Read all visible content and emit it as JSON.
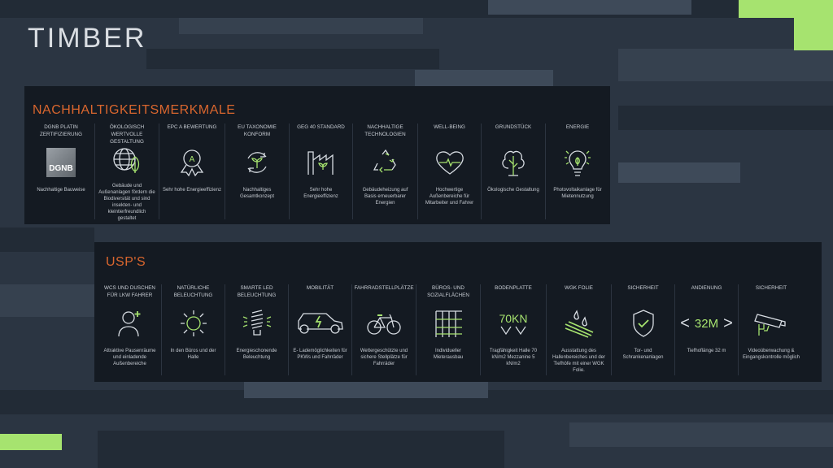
{
  "logo": "TIMBER",
  "colors": {
    "accent_green": "#a6e36f",
    "title_orange": "#d9662e",
    "panel": "#141a22",
    "background": "#2b3542"
  },
  "section1": {
    "title": "NACHHALTIGKEITSMERKMALE",
    "items": [
      {
        "heading": "DGNB PLATIN ZERTIFIZIERUNG",
        "icon": "dgnb-logo",
        "logo_text": "DGNB",
        "desc": "Nachhaltige Bauweise"
      },
      {
        "heading": "ÖKOLOGISCH WERTVOLLE GESTALTUNG",
        "icon": "globe-leaf-icon",
        "desc": "Gebäude und Außenanlagen fördern die Biodiversität und sind insekten- und kleintierfreundlich gestaltet"
      },
      {
        "heading": "EPC A BEWERTUNG",
        "icon": "award-icon",
        "badge": "A",
        "desc": "Sehr hohe Energieeffizienz"
      },
      {
        "heading": "EU TAXONOMIE KONFORM",
        "icon": "cycle-plant-icon",
        "desc": "Nachhaltiges Gesamtkonzept"
      },
      {
        "heading": "GEG 40 STANDARD",
        "icon": "factory-plant-icon",
        "desc": "Sehr hohe Energieeffizienz"
      },
      {
        "heading": "NACHHALTIGE TECHNOLOGIEN",
        "icon": "recycle-icon",
        "desc": "Gebäudeheizung auf Basis erneuerbarer Energien"
      },
      {
        "heading": "WELL-BEING",
        "icon": "heart-pulse-icon",
        "desc": "Hochwertige Außenbereiche für Mitarbeiter und Fahrer"
      },
      {
        "heading": "GRUNDSTÜCK",
        "icon": "tree-icon",
        "desc": "Ökologische Gestaltung"
      },
      {
        "heading": "ENERGIE",
        "icon": "bulb-leaf-icon",
        "desc": "Photovoltaikanlage für Mietennutzung"
      }
    ]
  },
  "section2": {
    "title": "USP'S",
    "items": [
      {
        "heading": "WCS UND DUSCHEN FÜR LKW FAHRER",
        "icon": "user-plus-icon",
        "desc": "Attraktive Pausenräume und einladende Außenbereiche"
      },
      {
        "heading": "NATÜRLICHE BELEUCHTUNG",
        "icon": "sun-icon",
        "desc": "In den Büros und der Halle"
      },
      {
        "heading": "SMARTE LED BELEUCHTUNG",
        "icon": "led-bulb-icon",
        "desc": "Energieschonende Beleuchtung"
      },
      {
        "heading": "MOBILITÄT",
        "icon": "electric-car-icon",
        "desc": "E- Lademöglichkeiten für PKWs und Fahrräder"
      },
      {
        "heading": "FAHRRADSTELLPLÄTZE",
        "icon": "bicycle-icon",
        "desc": "Wettergeschützte und sichere Stellplätze für Fahrräder"
      },
      {
        "heading": "BÜROS- UND SOZIALFLÄCHEN",
        "icon": "grid-icon",
        "desc": "Individueller Mieterausbau"
      },
      {
        "heading": "BODENPLATTE",
        "icon": "load-icon",
        "value": "70KN",
        "desc": "Tragfähigkeit Halle 70 kN/m2 Mezzanine 5 kN/m2"
      },
      {
        "heading": "WGK FOLIE",
        "icon": "drops-foil-icon",
        "desc": "Ausstattung des Hallenbereiches und der Tiefhöfe mit einer WGK Folie."
      },
      {
        "heading": "SICHERHEIT",
        "icon": "shield-check-icon",
        "desc": "Tor- und Schrankenanlagen"
      },
      {
        "heading": "ANDIENUNG",
        "icon": "width-icon",
        "value": "32M",
        "desc": "Tiefhoflänge 32 m"
      },
      {
        "heading": "SICHERHEIT",
        "icon": "cctv-icon",
        "desc": "Videoüberwachung & Eingangskontrolle möglich"
      }
    ]
  }
}
